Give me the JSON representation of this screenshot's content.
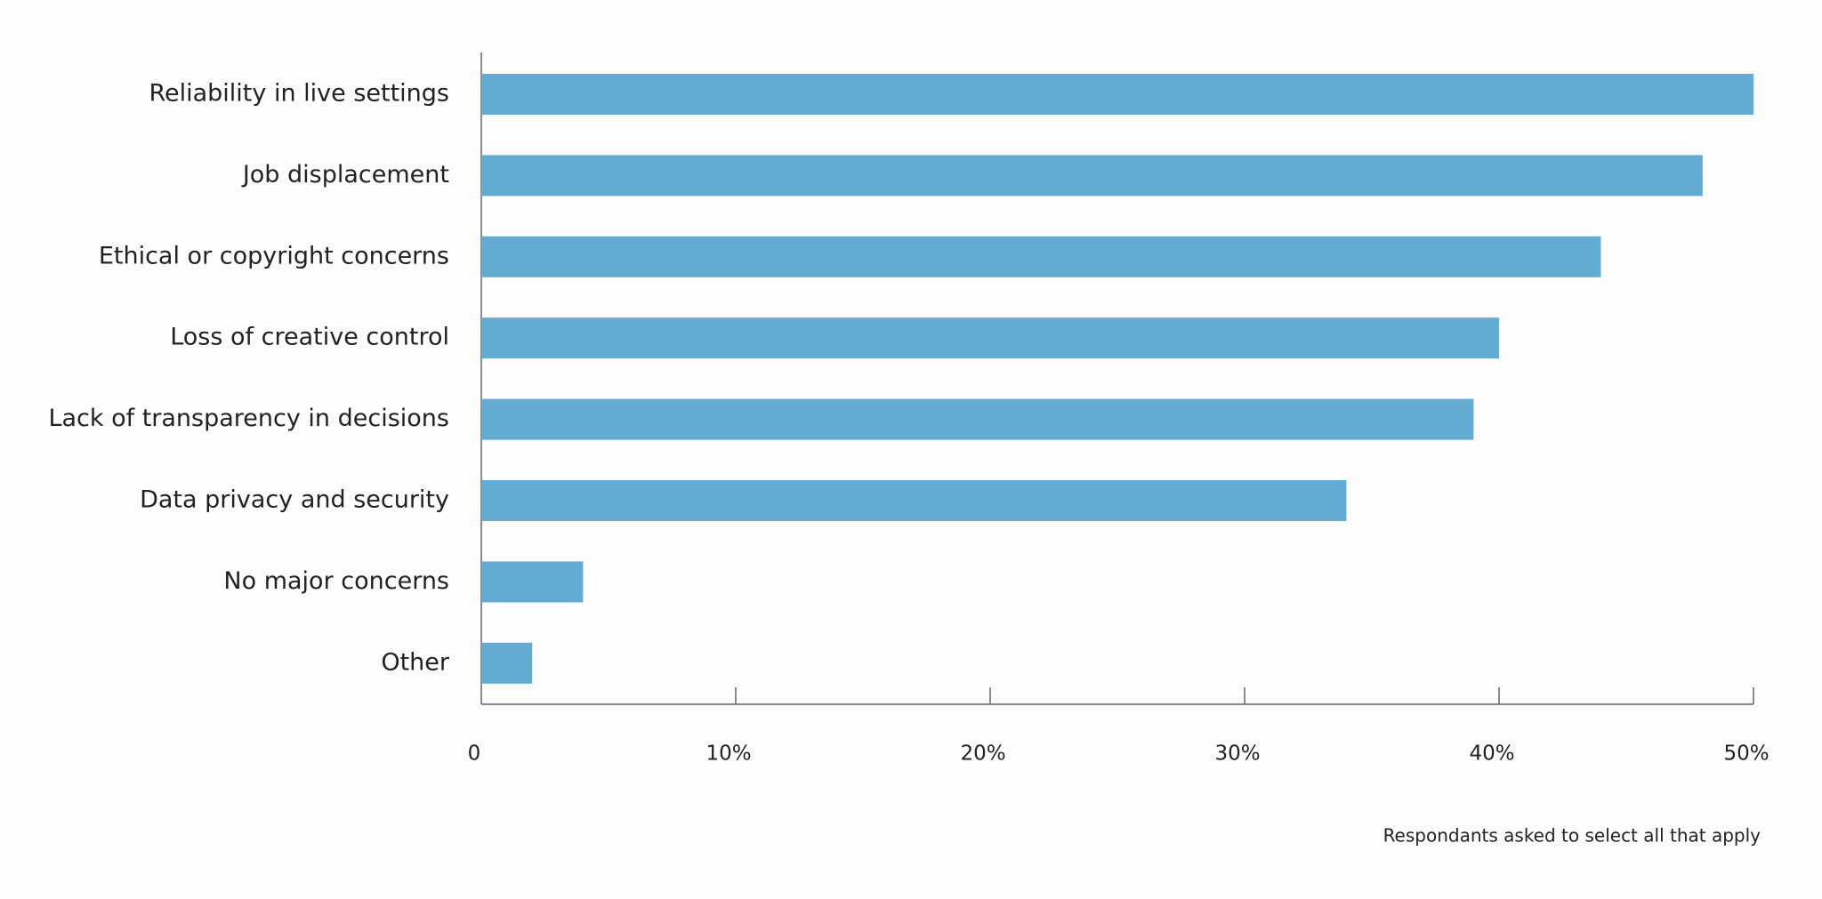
{
  "chart_data": {
    "type": "bar",
    "orientation": "horizontal",
    "categories": [
      "Reliability in live settings",
      "Job displacement",
      "Ethical or copyright concerns",
      "Loss of creative control",
      "Lack of transparency in decisions",
      "Data privacy and security",
      "No major concerns",
      "Other"
    ],
    "values": [
      50,
      48,
      44,
      40,
      39,
      34,
      4,
      2
    ],
    "color": "#62acd3",
    "xlim": [
      0,
      50
    ],
    "xticks": [
      0,
      {
        "value": 10,
        "label": "10%"
      },
      {
        "value": 20,
        "label": "20%"
      },
      {
        "value": 30,
        "label": "30%"
      },
      {
        "value": 40,
        "label": "40%"
      },
      {
        "value": 50,
        "label": "50%"
      }
    ],
    "note": "Respondants asked to select all that apply"
  }
}
